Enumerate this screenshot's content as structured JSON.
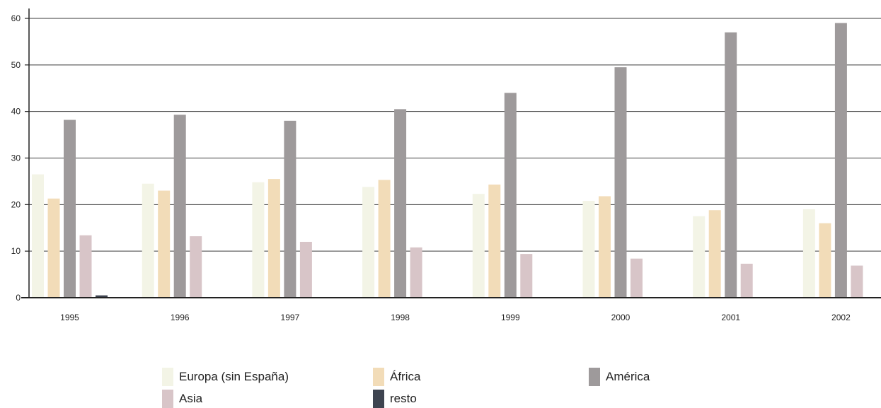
{
  "chart_data": {
    "type": "bar",
    "categories": [
      "1995",
      "1996",
      "1997",
      "1998",
      "1999",
      "2000",
      "2001",
      "2002"
    ],
    "series": [
      {
        "name": "Europa (sin España)",
        "color": "#f3f4e6",
        "values": [
          26.5,
          24.5,
          24.8,
          23.8,
          22.3,
          20.8,
          17.5,
          19.0
        ]
      },
      {
        "name": "África",
        "color": "#f2dcb8",
        "values": [
          21.3,
          23.0,
          25.5,
          25.3,
          24.3,
          21.8,
          18.8,
          16.0
        ]
      },
      {
        "name": "América",
        "color": "#9e9a9b",
        "values": [
          38.2,
          39.3,
          38.0,
          40.5,
          44.0,
          49.5,
          57.0,
          59.0
        ]
      },
      {
        "name": "Asia",
        "color": "#d8c5c8",
        "values": [
          13.4,
          13.2,
          12.0,
          10.8,
          9.4,
          8.4,
          7.3,
          6.9
        ]
      },
      {
        "name": "resto",
        "color": "#3e4450",
        "values": [
          0.5,
          0.1,
          0.1,
          0.1,
          0.1,
          0.1,
          0.1,
          0.1
        ]
      }
    ],
    "yticks": [
      0,
      10,
      20,
      30,
      40,
      50,
      60
    ],
    "ylim": [
      0,
      62
    ],
    "grid": true,
    "legend_position": "bottom"
  }
}
